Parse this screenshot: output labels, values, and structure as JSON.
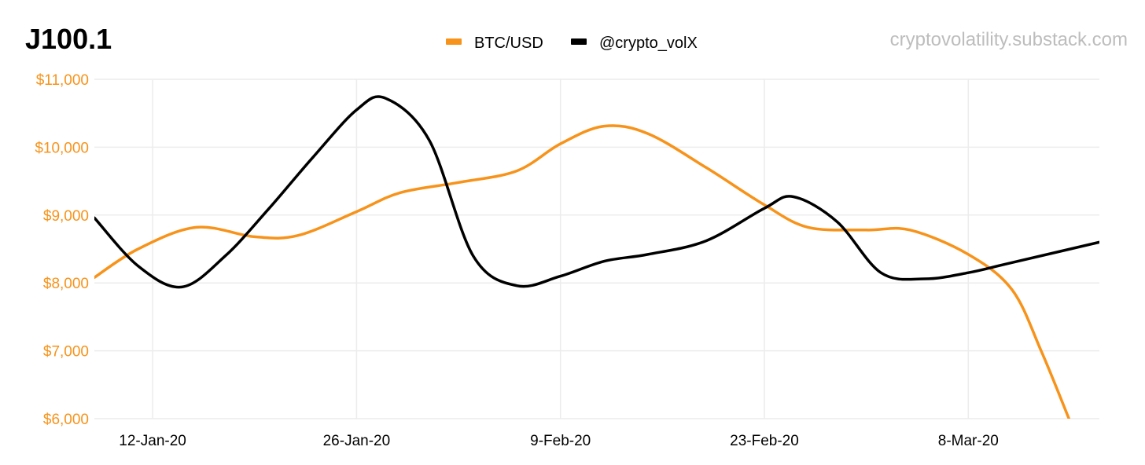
{
  "chart_data": {
    "type": "line",
    "title": "J100.1",
    "watermark": "cryptovolatility.substack.com",
    "legend_position": "top-center",
    "grid": true,
    "x_start": "2020-01-08",
    "x_end": "2020-03-17",
    "x_ticks": [
      {
        "date": "2020-01-12",
        "label": "12-Jan-20"
      },
      {
        "date": "2020-01-26",
        "label": "26-Jan-20"
      },
      {
        "date": "2020-02-09",
        "label": "9-Feb-20"
      },
      {
        "date": "2020-02-23",
        "label": "23-Feb-20"
      },
      {
        "date": "2020-03-08",
        "label": "8-Mar-20"
      }
    ],
    "y_ticks": [
      "$6,000",
      "$7,000",
      "$8,000",
      "$9,000",
      "$10,000",
      "$11,000"
    ],
    "ylim": [
      6000,
      11000
    ],
    "y_axis_color": "#f7931a",
    "series": [
      {
        "name": "BTC/USD",
        "color": "#f7931a",
        "points": [
          [
            "2020-01-08",
            8080
          ],
          [
            "2020-01-11",
            8500
          ],
          [
            "2020-01-15",
            8820
          ],
          [
            "2020-01-19",
            8680
          ],
          [
            "2020-01-22",
            8700
          ],
          [
            "2020-01-26",
            9050
          ],
          [
            "2020-01-29",
            9330
          ],
          [
            "2020-02-02",
            9480
          ],
          [
            "2020-02-06",
            9650
          ],
          [
            "2020-02-09",
            10050
          ],
          [
            "2020-02-12",
            10310
          ],
          [
            "2020-02-15",
            10200
          ],
          [
            "2020-02-19",
            9700
          ],
          [
            "2020-02-23",
            9150
          ],
          [
            "2020-02-26",
            8820
          ],
          [
            "2020-03-01",
            8780
          ],
          [
            "2020-03-04",
            8780
          ],
          [
            "2020-03-08",
            8420
          ],
          [
            "2020-03-11",
            7900
          ],
          [
            "2020-03-13",
            7000
          ],
          [
            "2020-03-15",
            5950
          ]
        ]
      },
      {
        "name": "@crypto_volX",
        "color": "#000000",
        "points": [
          [
            "2020-01-08",
            8960
          ],
          [
            "2020-01-11",
            8250
          ],
          [
            "2020-01-14",
            7940
          ],
          [
            "2020-01-17",
            8400
          ],
          [
            "2020-01-20",
            9100
          ],
          [
            "2020-01-23",
            9850
          ],
          [
            "2020-01-26",
            10550
          ],
          [
            "2020-01-28",
            10720
          ],
          [
            "2020-01-31",
            10100
          ],
          [
            "2020-02-03",
            8400
          ],
          [
            "2020-02-06",
            7960
          ],
          [
            "2020-02-09",
            8100
          ],
          [
            "2020-02-12",
            8320
          ],
          [
            "2020-02-15",
            8420
          ],
          [
            "2020-02-19",
            8620
          ],
          [
            "2020-02-23",
            9100
          ],
          [
            "2020-02-25",
            9270
          ],
          [
            "2020-02-28",
            8900
          ],
          [
            "2020-03-02",
            8150
          ],
          [
            "2020-03-05",
            8060
          ],
          [
            "2020-03-08",
            8150
          ],
          [
            "2020-03-11",
            8300
          ],
          [
            "2020-03-18",
            8650
          ]
        ]
      }
    ]
  }
}
